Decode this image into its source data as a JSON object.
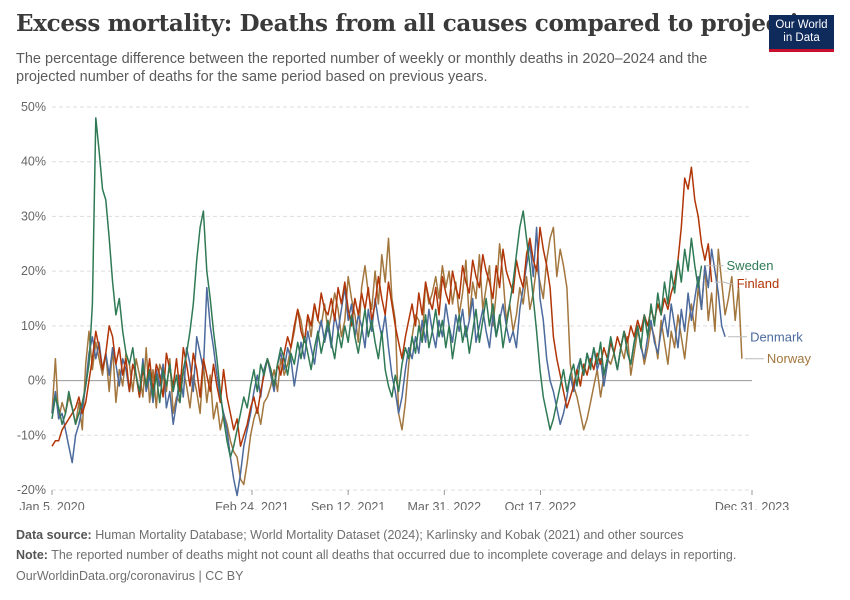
{
  "title": "Excess mortality: Deaths from all causes compared to projection",
  "subtitle": "The percentage difference between the reported number of weekly or monthly deaths in 2020–2024 and the projected number of deaths for the same period based on previous years.",
  "logo": {
    "line1": "Our World",
    "line2": "in Data"
  },
  "footer": {
    "source_label": "Data source:",
    "source_text": "Human Mortality Database; World Mortality Dataset (2024); Karlinsky and Kobak (2021) and other sources",
    "note_label": "Note:",
    "note_text": "The reported number of deaths might not count all deaths that occurred due to incomplete coverage and delays in reporting.",
    "url": "OurWorldinData.org/coronavirus | CC BY"
  },
  "chart_data": {
    "type": "line",
    "x_start": "2020-01-05",
    "x_step_days": 7,
    "x_ticks": [
      {
        "date": "2020-01-05",
        "label": "Jan 5, 2020"
      },
      {
        "date": "2021-02-24",
        "label": "Feb 24, 2021"
      },
      {
        "date": "2021-09-12",
        "label": "Sep 12, 2021"
      },
      {
        "date": "2022-03-31",
        "label": "Mar 31, 2022"
      },
      {
        "date": "2022-10-17",
        "label": "Oct 17, 2022"
      },
      {
        "date": "2023-12-31",
        "label": "Dec 31, 2023"
      }
    ],
    "y_ticks": [
      -20,
      -10,
      0,
      10,
      20,
      30,
      40,
      50
    ],
    "y_tick_labels": [
      "-20%",
      "-10%",
      "0%",
      "10%",
      "20%",
      "30%",
      "40%",
      "50%"
    ],
    "ylim": [
      -20,
      50
    ],
    "grid": true,
    "legend_position": "right-end-labels",
    "series": [
      {
        "name": "Norway",
        "color": "#a2763d",
        "values": [
          -6,
          4,
          -7,
          -4,
          -6,
          -3,
          -5,
          -8,
          -4,
          -9,
          3,
          9,
          2,
          7,
          4,
          1,
          5,
          -2,
          6,
          -4,
          2,
          -1,
          5,
          3,
          -2,
          4,
          1,
          -3,
          6,
          -4,
          2,
          -5,
          3,
          1,
          -2,
          4,
          -6,
          -3,
          -4,
          2,
          -1,
          -5,
          1,
          -2,
          -6,
          3,
          -4,
          1,
          -7,
          -4,
          -9,
          -6,
          -8,
          -11,
          -13,
          -14,
          -18,
          -19,
          -15,
          -10,
          -7,
          -5,
          -8,
          -4,
          -3,
          -1,
          2,
          -2,
          4,
          1,
          3,
          6,
          9,
          13,
          11,
          7,
          12,
          8,
          14,
          11,
          10,
          14,
          9,
          12,
          16,
          13,
          8,
          11,
          19,
          15,
          12,
          7,
          17,
          21,
          16,
          13,
          20,
          14,
          23,
          18,
          26,
          15,
          11,
          -6,
          -9,
          -4,
          3,
          8,
          12,
          11,
          7,
          18,
          14,
          16,
          19,
          15,
          21,
          17,
          20,
          14,
          18,
          12,
          16,
          22,
          11,
          18,
          15,
          23,
          13,
          17,
          21,
          10,
          16,
          25,
          19,
          11,
          14,
          9,
          12,
          17,
          14,
          19,
          13,
          16,
          21,
          18,
          15,
          22,
          26,
          28,
          19,
          24,
          21,
          17,
          3,
          -1,
          -3,
          -6,
          -9,
          -7,
          -4,
          -1,
          2,
          -3,
          1,
          4,
          3,
          5,
          2,
          6,
          4,
          8,
          1,
          5,
          9,
          7,
          3,
          6,
          10,
          8,
          4,
          11,
          7,
          3,
          9,
          6,
          12,
          8,
          4,
          10,
          14,
          9,
          17,
          13,
          21,
          11,
          16,
          9,
          24,
          18,
          12,
          15,
          19,
          11,
          17,
          4
        ]
      },
      {
        "name": "Denmark",
        "color": "#4c6a9c",
        "values": [
          -6,
          -2,
          -7,
          -6,
          -9,
          -12,
          -15,
          -10,
          -8,
          -5,
          -1,
          5,
          8,
          4,
          7,
          2,
          5,
          1,
          6,
          3,
          -1,
          4,
          2,
          -2,
          3,
          1,
          -3,
          4,
          -2,
          1,
          -4,
          2,
          -1,
          3,
          -5,
          -2,
          -8,
          -4,
          1,
          -3,
          6,
          3,
          -2,
          8,
          5,
          2,
          17,
          10,
          6,
          1,
          -3,
          -6,
          -9,
          -14,
          -18,
          -21,
          -17,
          -12,
          -9,
          -6,
          -2,
          1,
          -3,
          2,
          4,
          1,
          -2,
          3,
          5,
          2,
          6,
          4,
          -1,
          3,
          7,
          4,
          9,
          6,
          3,
          8,
          11,
          7,
          10,
          6,
          12,
          9,
          13,
          17,
          11,
          14,
          8,
          12,
          10,
          6,
          13,
          9,
          15,
          11,
          8,
          12,
          6,
          1,
          -2,
          -6,
          -3,
          2,
          6,
          4,
          8,
          5,
          11,
          7,
          13,
          9,
          6,
          11,
          8,
          14,
          10,
          7,
          12,
          9,
          13,
          8,
          11,
          15,
          7,
          10,
          13,
          9,
          6,
          12,
          8,
          11,
          14,
          10,
          7,
          9,
          6,
          13,
          17,
          21,
          25,
          19,
          28,
          15,
          11,
          4,
          0,
          -2,
          -5,
          -8,
          -6,
          -3,
          1,
          -2,
          2,
          4,
          1,
          5,
          3,
          6,
          2,
          4,
          -1,
          3,
          7,
          5,
          2,
          6,
          9,
          5,
          3,
          7,
          10,
          6,
          4,
          8,
          11,
          7,
          5,
          9,
          12,
          8,
          14,
          10,
          6,
          13,
          9,
          16,
          11,
          15,
          19,
          13,
          21,
          17,
          24,
          20,
          16,
          10,
          8
        ]
      },
      {
        "name": "Finland",
        "color": "#b13507",
        "values": [
          -12,
          -11,
          -11,
          -9,
          -8,
          -7,
          -6,
          -5,
          -3,
          -6,
          -4,
          0,
          4,
          9,
          6,
          2,
          5,
          10,
          8,
          3,
          6,
          1,
          4,
          -2,
          3,
          1,
          -3,
          2,
          -1,
          4,
          -2,
          3,
          1,
          -3,
          5,
          2,
          -1,
          4,
          -2,
          6,
          3,
          -1,
          5,
          2,
          -3,
          4,
          1,
          -2,
          3,
          -1,
          -4,
          2,
          -3,
          -6,
          -9,
          -7,
          -12,
          -10,
          -8,
          -5,
          -3,
          -6,
          -2,
          1,
          4,
          2,
          -1,
          3,
          1,
          5,
          8,
          6,
          10,
          13,
          9,
          7,
          12,
          10,
          14,
          11,
          16,
          13,
          12,
          15,
          11,
          17,
          14,
          18,
          13,
          10,
          15,
          12,
          16,
          13,
          17,
          11,
          14,
          19,
          15,
          12,
          18,
          14,
          10,
          7,
          4,
          8,
          11,
          14,
          10,
          16,
          12,
          18,
          15,
          13,
          17,
          12,
          19,
          16,
          14,
          20,
          17,
          15,
          21,
          18,
          16,
          22,
          19,
          17,
          23,
          20,
          18,
          15,
          21,
          17,
          24,
          20,
          18,
          16,
          22,
          19,
          17,
          23,
          26,
          22,
          20,
          28,
          24,
          21,
          17,
          8,
          4,
          1,
          -2,
          -5,
          -3,
          -1,
          2,
          -1,
          3,
          1,
          4,
          2,
          5,
          3,
          6,
          4,
          7,
          5,
          8,
          6,
          9,
          7,
          10,
          8,
          11,
          9,
          12,
          10,
          13,
          11,
          14,
          12,
          15,
          13,
          16,
          18,
          22,
          28,
          37,
          35,
          39,
          33,
          30,
          25,
          22,
          25,
          18
        ]
      },
      {
        "name": "Sweden",
        "color": "#2f7a55",
        "values": [
          -7,
          -3,
          -5,
          -8,
          -6,
          -2,
          -5,
          -8,
          -6,
          -4,
          -1,
          3,
          14,
          48,
          42,
          35,
          33,
          26,
          18,
          12,
          15,
          9,
          5,
          3,
          6,
          1,
          -2,
          3,
          -1,
          2,
          -3,
          1,
          -4,
          2,
          -1,
          3,
          -2,
          1,
          -4,
          2,
          5,
          9,
          14,
          22,
          28,
          31,
          20,
          15,
          9,
          4,
          -2,
          -7,
          -11,
          -14,
          -12,
          -9,
          -6,
          -3,
          -5,
          -1,
          2,
          -2,
          3,
          1,
          4,
          2,
          -1,
          3,
          6,
          4,
          1,
          5,
          3,
          7,
          4,
          8,
          5,
          2,
          6,
          9,
          5,
          8,
          11,
          7,
          4,
          9,
          6,
          10,
          7,
          12,
          8,
          5,
          9,
          13,
          8,
          11,
          7,
          4,
          9,
          2,
          -1,
          -3,
          1,
          -2,
          3,
          6,
          4,
          8,
          5,
          10,
          7,
          12,
          6,
          9,
          13,
          8,
          11,
          6,
          10,
          4,
          8,
          12,
          7,
          10,
          5,
          9,
          13,
          7,
          11,
          15,
          10,
          14,
          8,
          12,
          6,
          10,
          14,
          18,
          23,
          28,
          31,
          26,
          21,
          15,
          9,
          2,
          -3,
          -6,
          -9,
          -7,
          -4,
          -1,
          2,
          -2,
          1,
          3,
          -1,
          4,
          1,
          5,
          2,
          6,
          3,
          7,
          1,
          4,
          8,
          5,
          2,
          6,
          9,
          5,
          3,
          7,
          10,
          6,
          12,
          8,
          14,
          10,
          16,
          12,
          18,
          14,
          20,
          16,
          22,
          18,
          24,
          20,
          26,
          21,
          17,
          21
        ]
      }
    ]
  }
}
